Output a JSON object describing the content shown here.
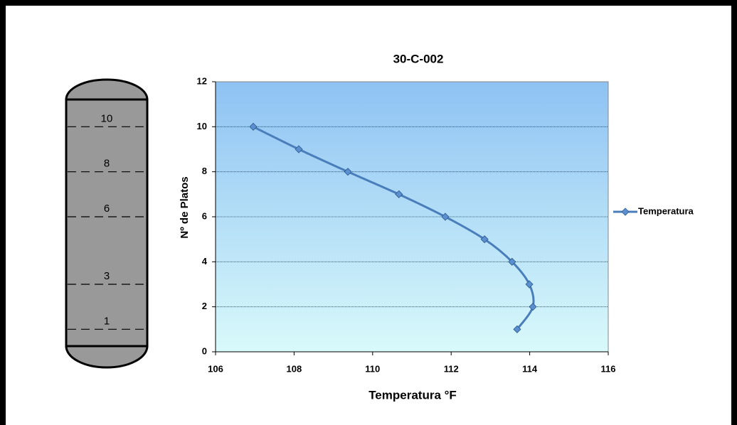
{
  "chart_data": {
    "type": "scatter",
    "title": "30-C-002",
    "x_label": "Temperatura °F",
    "y_label": "Nº de Platos",
    "x": [
      106.96,
      108.12,
      109.37,
      110.67,
      111.85,
      112.85,
      113.55,
      113.99,
      114.08,
      113.68
    ],
    "series": [
      {
        "name": "Temperatura",
        "color": "#4a7ebb",
        "values": [
          10,
          9,
          8,
          7,
          6,
          5,
          4,
          3,
          2,
          1
        ]
      }
    ],
    "xlim": [
      106,
      116
    ],
    "xticks": [
      106,
      108,
      110,
      112,
      114,
      116
    ],
    "ylim": [
      0,
      12
    ],
    "yticks": [
      0,
      2,
      4,
      6,
      8,
      10,
      12
    ],
    "grid": true,
    "smooth": true,
    "legend": "right"
  },
  "column": {
    "stages": [
      10,
      8,
      6,
      3,
      1
    ]
  }
}
